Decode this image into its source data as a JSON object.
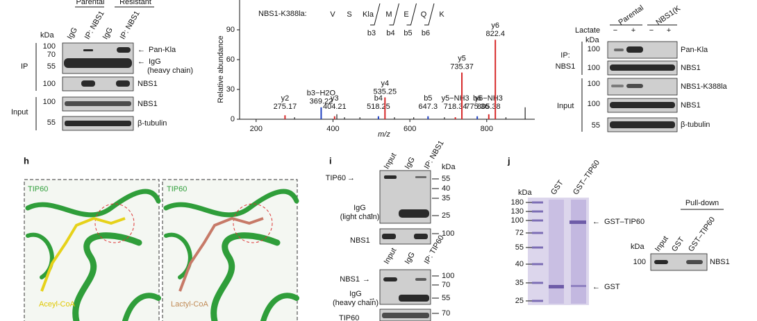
{
  "panel_f": {
    "header": [
      "Parental",
      "Resistant"
    ],
    "lanes": [
      "IgG",
      "IP: NBS1",
      "IgG",
      "IP: NBS1"
    ],
    "kda": "kDa",
    "markers": [
      100,
      70,
      55,
      100,
      100,
      55
    ],
    "groups": [
      "IP",
      "Input"
    ],
    "bands": [
      "Pan-Kla",
      "IgG",
      "(heavy chain)",
      "NBS1",
      "NBS1",
      "β-tubulin"
    ]
  },
  "panel_g": {
    "peptide": "NBS1-K388la:",
    "residues": [
      "V",
      "S",
      "Kla",
      "M",
      "E",
      "Q",
      "K"
    ],
    "fragments": [
      "b3",
      "b4",
      "b5",
      "b6"
    ],
    "y_label": "Relative abundance",
    "x_label": "m/z",
    "xlim": [
      157,
      925
    ],
    "ylim": [
      0,
      120
    ],
    "xticks": [
      200,
      400,
      600,
      800
    ],
    "yticks": [
      0,
      30,
      60,
      90
    ],
    "peaks": [
      {
        "name": "y2",
        "mz": 275.17,
        "intensity": 4,
        "color": "#d62728"
      },
      {
        "name": "b3−H2O",
        "mz": 369.22,
        "intensity": 12,
        "color": "#1f3fbf"
      },
      {
        "name": "y3",
        "mz": 404.21,
        "intensity": 3,
        "color": "#d62728"
      },
      {
        "name": "b4",
        "mz": 518.25,
        "intensity": 3,
        "color": "#1f3fbf"
      },
      {
        "name": "y4",
        "mz": 535.25,
        "intensity": 22,
        "color": "#d62728"
      },
      {
        "name": "b5",
        "mz": 647.3,
        "intensity": 3,
        "color": "#1f3fbf"
      },
      {
        "name": "y5−NH3",
        "mz": 718.34,
        "intensity": 2,
        "color": "#d62728"
      },
      {
        "name": "y5",
        "mz": 735.37,
        "intensity": 47,
        "color": "#d62728"
      },
      {
        "name": "b6",
        "mz": 775.36,
        "intensity": 3,
        "color": "#1f3fbf"
      },
      {
        "name": "y6−NH3",
        "mz": 805.38,
        "intensity": 5,
        "color": "#d62728"
      },
      {
        "name": "y6",
        "mz": 822.4,
        "intensity": 80,
        "color": "#d62728"
      }
    ],
    "other_peaks": [
      {
        "mz": 300,
        "intensity": 2
      },
      {
        "mz": 410,
        "intensity": 5
      },
      {
        "mz": 430,
        "intensity": 2
      },
      {
        "mz": 470,
        "intensity": 2
      },
      {
        "mz": 560,
        "intensity": 2
      },
      {
        "mz": 610,
        "intensity": 2
      },
      {
        "mz": 690,
        "intensity": 2
      },
      {
        "mz": 850,
        "intensity": 2
      },
      {
        "mz": 900,
        "intensity": 12
      }
    ],
    "other_color": "#222"
  },
  "panel_h": {
    "label": "h",
    "titles": [
      "TIP60",
      "TIP60"
    ],
    "ligands": [
      "Aceyl-CoA",
      "Lactyl-CoA"
    ]
  },
  "panel_i": {
    "label": "i",
    "lanes_top": [
      "Input",
      "IgG",
      "IP: NBS1"
    ],
    "lanes_bottom": [
      "Input",
      "IgG",
      "IP: TIP60"
    ],
    "kda": "kDa",
    "markers_top": [
      55,
      40,
      35,
      25,
      100
    ],
    "markers_bottom": [
      100,
      70,
      55,
      70
    ],
    "bands": [
      "TIP60",
      "IgG",
      "(light chain)",
      "NBS1",
      "NBS1",
      "IgG",
      "(heavy chain)",
      "TIP60"
    ]
  },
  "panel_j": {
    "label": "j",
    "kda": "kDa",
    "markers": [
      180,
      130,
      100,
      72,
      55,
      40,
      35,
      25
    ],
    "lanes": [
      "GST",
      "GST–TIP60"
    ],
    "bands": [
      "GST–TIP60",
      "GST"
    ],
    "pulldown": "Pull-down",
    "pd_lanes": [
      "Input",
      "GST",
      "GST–TIP60"
    ],
    "pd_kda": "kDa",
    "pd_marker": 100,
    "pd_band": "NBS1"
  },
  "panel_k": {
    "header": [
      "Parental",
      "NBS1(K"
    ],
    "treatment": "Lactate",
    "signs": [
      "−",
      "+",
      "−",
      "+"
    ],
    "kda": "kDa",
    "markers": [
      100,
      100,
      100,
      100,
      55
    ],
    "groups": [
      "IP:",
      "NBS1",
      "Input"
    ],
    "bands": [
      "Pan-Kla",
      "NBS1",
      "NBS1-K388la",
      "NBS1",
      "β-tubulin"
    ]
  }
}
